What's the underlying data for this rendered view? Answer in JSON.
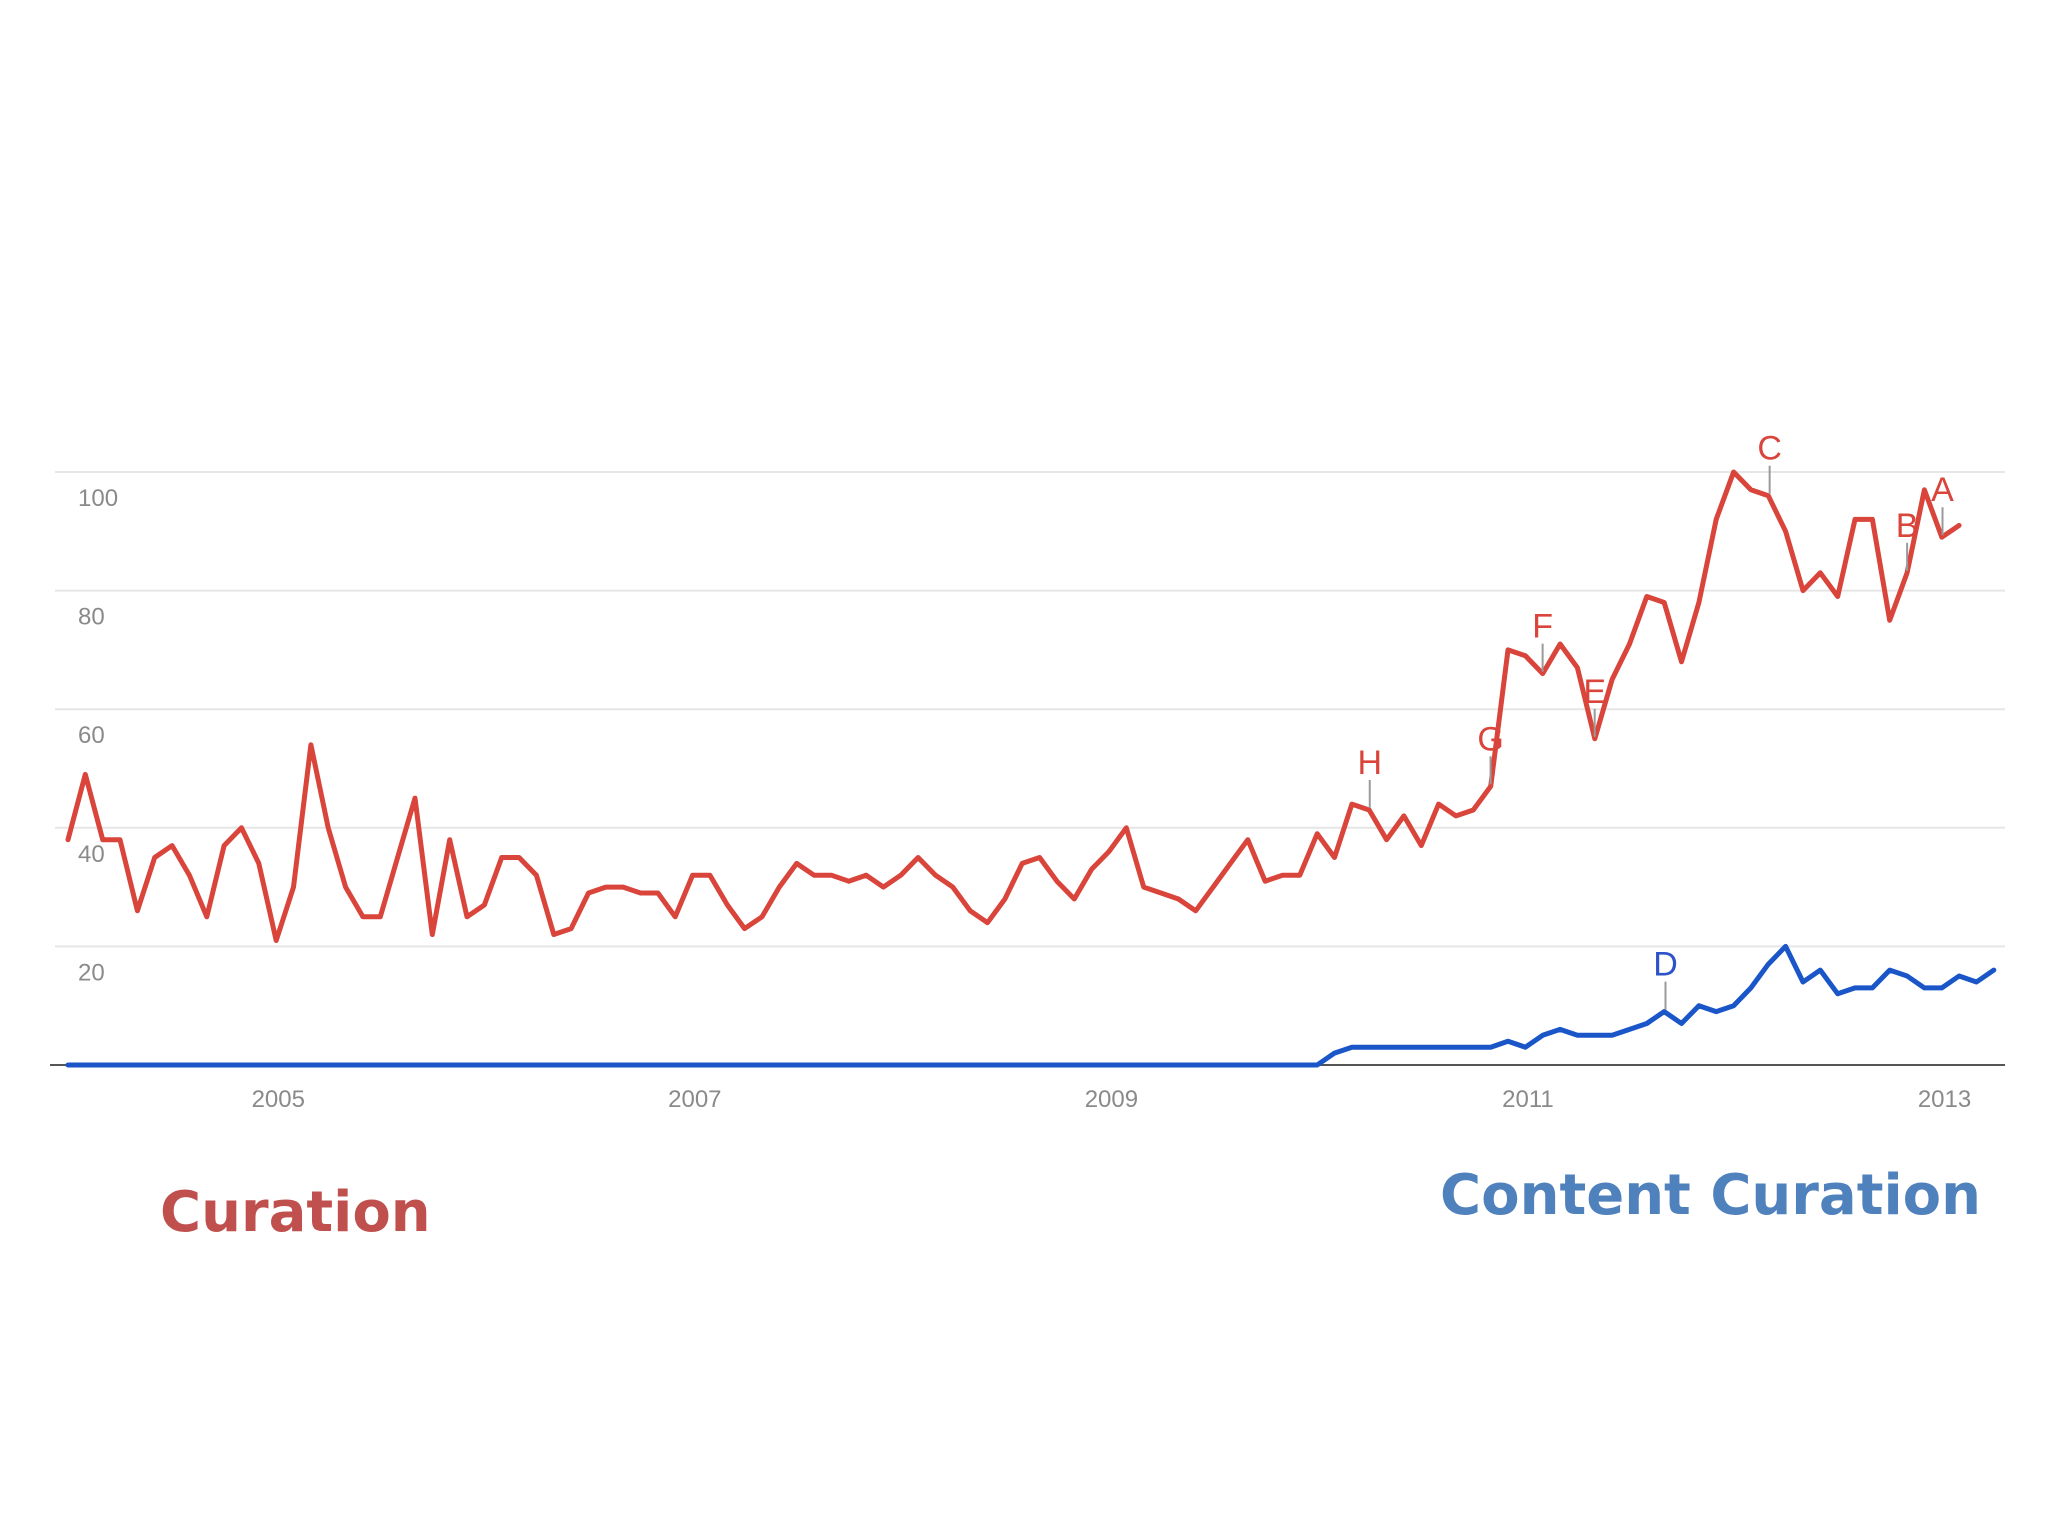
{
  "chart_data": {
    "type": "line",
    "title": "",
    "xlabel": "",
    "ylabel": "",
    "x_ticks": [
      "2005",
      "2007",
      "2009",
      "2011",
      "2013"
    ],
    "y_ticks": [
      "20",
      "40",
      "60",
      "80",
      "100"
    ],
    "xlim": [
      2004.0,
      2013.3
    ],
    "ylim": [
      0,
      100
    ],
    "grid": true,
    "series": [
      {
        "name": "Curation",
        "color": "#d9443b",
        "x_start": 2004.0,
        "x_step": 0.0833,
        "values": [
          38,
          49,
          38,
          38,
          26,
          35,
          37,
          32,
          25,
          37,
          40,
          34,
          21,
          30,
          54,
          40,
          30,
          25,
          25,
          35,
          45,
          22,
          38,
          25,
          27,
          35,
          35,
          32,
          22,
          23,
          29,
          30,
          30,
          29,
          29,
          25,
          32,
          32,
          27,
          23,
          25,
          30,
          34,
          32,
          32,
          31,
          32,
          30,
          32,
          35,
          32,
          30,
          26,
          24,
          28,
          34,
          35,
          31,
          28,
          33,
          36,
          40,
          30,
          29,
          28,
          26,
          30,
          34,
          38,
          31,
          32,
          32,
          39,
          35,
          44,
          43,
          38,
          42,
          37,
          44,
          42,
          43,
          47,
          70,
          69,
          66,
          71,
          67,
          55,
          65,
          71,
          79,
          78,
          68,
          78,
          92,
          100,
          97,
          96,
          90,
          80,
          83,
          79,
          92,
          92,
          75,
          83,
          97,
          89,
          91
        ]
      },
      {
        "name": "Content Curation",
        "color": "#1a56c8",
        "x_start": 2004.0,
        "x_step": 0.0833,
        "values": [
          0,
          0,
          0,
          0,
          0,
          0,
          0,
          0,
          0,
          0,
          0,
          0,
          0,
          0,
          0,
          0,
          0,
          0,
          0,
          0,
          0,
          0,
          0,
          0,
          0,
          0,
          0,
          0,
          0,
          0,
          0,
          0,
          0,
          0,
          0,
          0,
          0,
          0,
          0,
          0,
          0,
          0,
          0,
          0,
          0,
          0,
          0,
          0,
          0,
          0,
          0,
          0,
          0,
          0,
          0,
          0,
          0,
          0,
          0,
          0,
          0,
          0,
          0,
          0,
          0,
          0,
          0,
          0,
          0,
          0,
          0,
          0,
          0,
          2,
          3,
          3,
          3,
          3,
          3,
          3,
          3,
          3,
          3,
          4,
          3,
          5,
          6,
          5,
          5,
          5,
          6,
          7,
          9,
          7,
          10,
          9,
          10,
          13,
          17,
          20,
          14,
          16,
          12,
          13,
          13,
          16,
          15,
          13,
          13,
          15,
          14,
          16
        ]
      }
    ],
    "annotations": [
      {
        "letter": "H",
        "x": 2010.25,
        "series": 0,
        "color": "#d9443b"
      },
      {
        "letter": "G",
        "x": 2010.83,
        "series": 0,
        "color": "#d9443b"
      },
      {
        "letter": "F",
        "x": 2011.08,
        "series": 0,
        "color": "#d9443b"
      },
      {
        "letter": "E",
        "x": 2011.33,
        "series": 0,
        "color": "#d9443b"
      },
      {
        "letter": "D",
        "x": 2011.67,
        "series": 1,
        "color": "#2e52c8"
      },
      {
        "letter": "C",
        "x": 2012.17,
        "series": 0,
        "color": "#d9443b"
      },
      {
        "letter": "B",
        "x": 2012.83,
        "series": 0,
        "color": "#d9443b"
      },
      {
        "letter": "A",
        "x": 2013.0,
        "series": 0,
        "color": "#d9443b"
      }
    ]
  },
  "legend": {
    "curation_label": "Curation",
    "curation_color": "#c0504d",
    "content_curation_label": "Content Curation",
    "content_curation_color": "#4f81bd"
  }
}
